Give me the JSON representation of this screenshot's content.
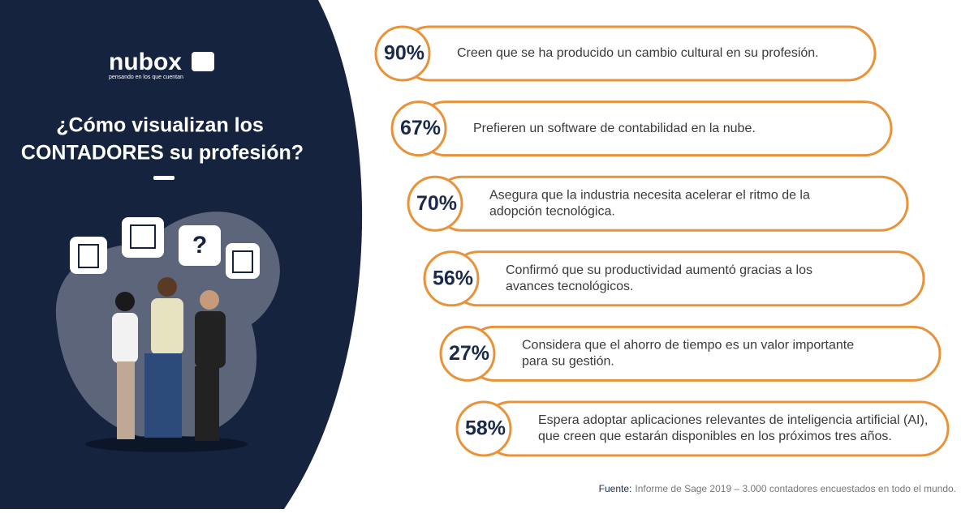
{
  "logo": {
    "name": "nubox",
    "tagline": "pensando en los que cuentan"
  },
  "title": {
    "line1": "¿Cómo visualizan los",
    "line2": "CONTADORES su profesión?"
  },
  "items": [
    {
      "percent": "90%",
      "text": [
        "Creen que se ha producido un cambio cultural en su profesión."
      ]
    },
    {
      "percent": "67%",
      "text": [
        "Prefieren un software de contabilidad en la nube."
      ]
    },
    {
      "percent": "70%",
      "text": [
        "Asegura que la industria necesita acelerar el ritmo de la",
        "adopción tecnológica."
      ]
    },
    {
      "percent": "56%",
      "text": [
        "Confirmó que su productividad aumentó gracias a los",
        "avances tecnológicos."
      ]
    },
    {
      "percent": "27%",
      "text": [
        "Considera que el ahorro de tiempo es un valor importante",
        "para su gestión."
      ]
    },
    {
      "percent": "58%",
      "text": [
        "Espera adoptar aplicaciones relevantes de inteligencia artificial (AI),",
        "que creen que estarán disponibles en los próximos tres años."
      ]
    }
  ],
  "source": {
    "label": "Fuente:",
    "text": "Informe de Sage 2019 – 3.000 contadores encuestados en todo el mundo."
  }
}
